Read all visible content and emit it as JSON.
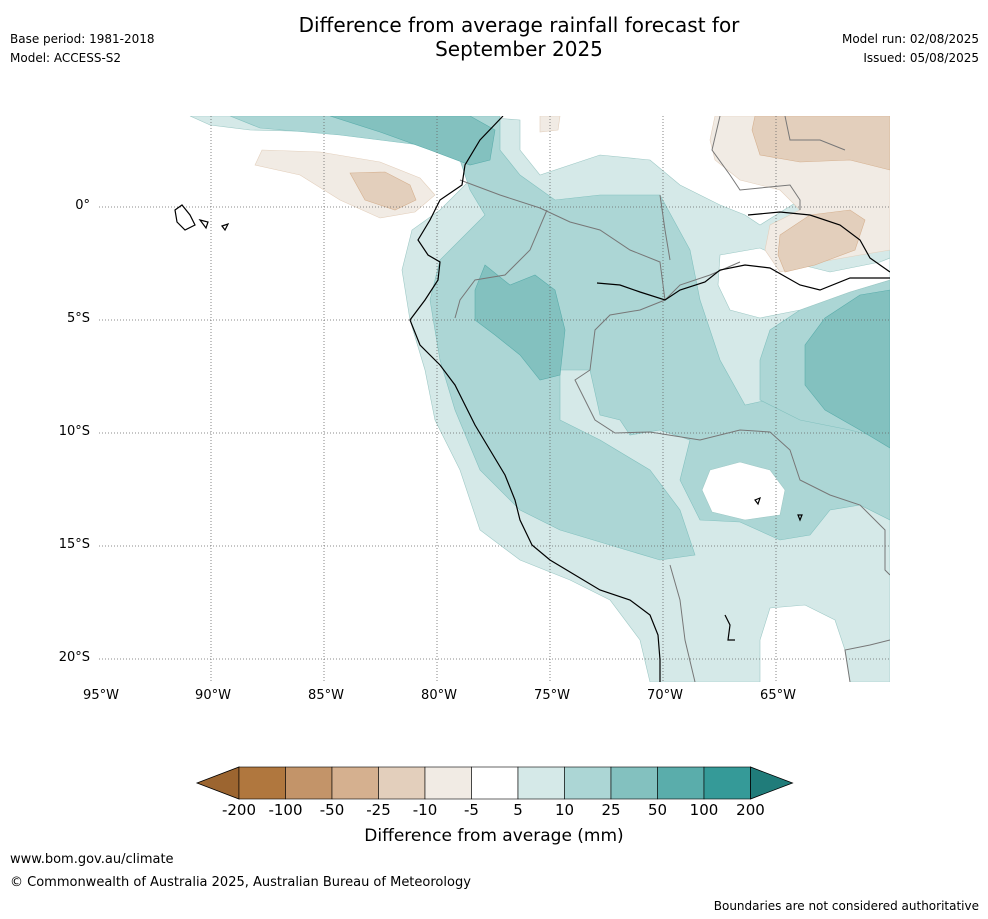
{
  "header": {
    "title_line1": "Difference from average rainfall forecast for",
    "title_line2": "September 2025",
    "base_period": "Base period: 1981-2018",
    "model": "Model: ACCESS-S2",
    "model_run": "Model run: 02/08/2025",
    "issued": "Issued: 05/08/2025"
  },
  "map": {
    "lat_labels": [
      "0°",
      "5°S",
      "10°S",
      "15°S",
      "20°S"
    ],
    "lon_labels": [
      "95°W",
      "90°W",
      "85°W",
      "80°W",
      "75°W",
      "70°W",
      "65°W"
    ]
  },
  "colorbar": {
    "title": "Difference from average (mm)",
    "labels": [
      "-200",
      "-100",
      "-50",
      "-25",
      "-10",
      "-5",
      "5",
      "10",
      "25",
      "50",
      "100",
      "200"
    ],
    "colors": [
      "#9c6530",
      "#b0773e",
      "#c39469",
      "#d5b08f",
      "#e3cfbc",
      "#f1ebe4",
      "#ffffff",
      "#d5e9e8",
      "#acd6d5",
      "#83c1bf",
      "#5aadab",
      "#359a98",
      "#207c7a"
    ]
  },
  "footer": {
    "website": "www.bom.gov.au/climate",
    "copyright": "© Commonwealth of Australia 2025, Australian Bureau of Meteorology",
    "disclaimer": "Boundaries are not considered authoritative"
  }
}
